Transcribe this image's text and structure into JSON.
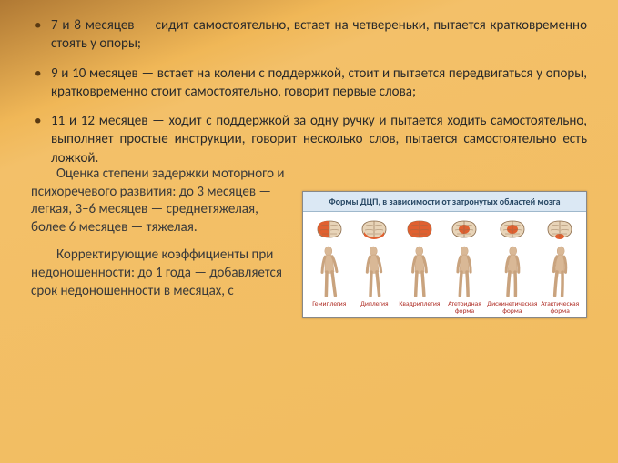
{
  "bullets": [
    "7 и 8 месяцев — сидит самостоятельно, встает на четвереньки, пытается кратковременно стоять у опоры;",
    "9 и 10 месяцев — встает на колени с поддержкой, стоит и пытается передвигаться у опоры, кратковременно стоит самостоятельно, говорит первые слова;",
    "11 и 12 месяцев — ходит с поддержкой за одну ручку и пытается ходить самостоятельно, выполняет простые инструкции, говорит несколько слов, пытается самостоятельно есть ложкой."
  ],
  "para1": "Оценка степени задержки моторного и психоречевого развития: до 3 месяцев — легкая, 3–6 месяцев — среднетяжелая, более 6 месяцев — тяжелая.",
  "para2": "Корректирующие коэффициенты при недоношенности: до 1 года — добавляется срок недоношенности в месяцах, с",
  "fig": {
    "title": "Формы ДЦП, в зависимости от затронутых областей мозга",
    "items": [
      {
        "label": "Гемиплегия",
        "zones": [
          "L"
        ]
      },
      {
        "label": "Диплегия",
        "zones": [
          "B"
        ]
      },
      {
        "label": "Квадриплегия",
        "zones": [
          "A"
        ]
      },
      {
        "label": "Атетоидная форма",
        "zones": [
          "C"
        ]
      },
      {
        "label": "Дискинетическая форма",
        "zones": [
          "C"
        ]
      },
      {
        "label": "Атактическая форма",
        "zones": [
          "CB"
        ]
      }
    ],
    "colors": {
      "brain_outline": "#8a6a4a",
      "brain_fill": "#e8d4b8",
      "brain_highlight": "#e06030",
      "skin": "#d9b896",
      "skin_dark": "#c9a37e",
      "label": "#b03028"
    }
  }
}
